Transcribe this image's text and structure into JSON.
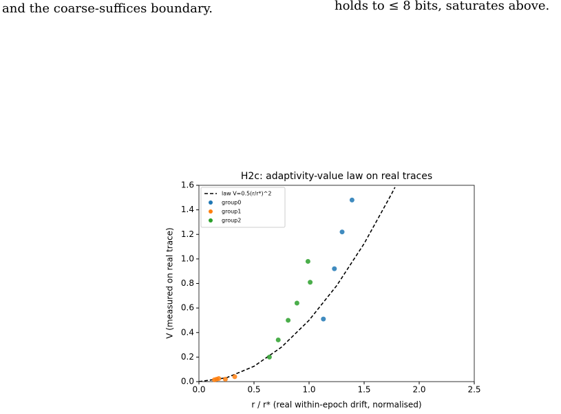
{
  "text": {
    "left": "and the coarse-suffices boundary.",
    "right": "holds to ≤ 8 bits, saturates above."
  },
  "chart_data": {
    "type": "scatter",
    "title": "H2c: adaptivity-value law on real traces",
    "x_label": "r / r*  (real within-epoch drift, normalised)",
    "y_label": "V (measured on real trace)",
    "xlim": [
      0,
      2.5
    ],
    "ylim": [
      0,
      1.6
    ],
    "xticks": [
      {
        "value": 0,
        "label": "0.0"
      },
      0.5,
      {
        "value": 1,
        "label": "1.0"
      },
      1.5,
      {
        "value": 2,
        "label": "2.0"
      },
      2.5
    ],
    "yticks": [
      {
        "value": 0,
        "label": "0.0"
      },
      0.2,
      0.4,
      0.6,
      0.8,
      {
        "value": 1,
        "label": "1.0"
      },
      1.2,
      1.4,
      1.6
    ],
    "legend": "upper left",
    "series": [
      {
        "name": "law V=0.5(r/r*)^2",
        "color": "#000000",
        "style": "dashed",
        "x": [
          0,
          0.25,
          0.5,
          0.75,
          1,
          1.25,
          1.5,
          1.75,
          1.78
        ],
        "values": [
          0,
          0.03125,
          0.125,
          0.28125,
          0.5,
          0.78125,
          1.125,
          1.53125,
          1.5842
        ]
      },
      {
        "name": "group0",
        "color": "#1f77b4",
        "x": [
          1.39,
          1.3,
          1.23,
          1.13
        ],
        "values": [
          1.48,
          1.22,
          0.92,
          0.51
        ]
      },
      {
        "name": "group1",
        "color": "#ff7f0e",
        "x": [
          0.14,
          0.16,
          0.18,
          0.24,
          0.325
        ],
        "values": [
          0.015,
          0.02,
          0.025,
          0.02,
          0.04
        ]
      },
      {
        "name": "group2",
        "color": "#2ca02c",
        "x": [
          0.99,
          1.01,
          0.89,
          0.81,
          0.72,
          0.64
        ],
        "values": [
          0.98,
          0.81,
          0.64,
          0.5,
          0.34,
          0.2
        ]
      }
    ]
  }
}
